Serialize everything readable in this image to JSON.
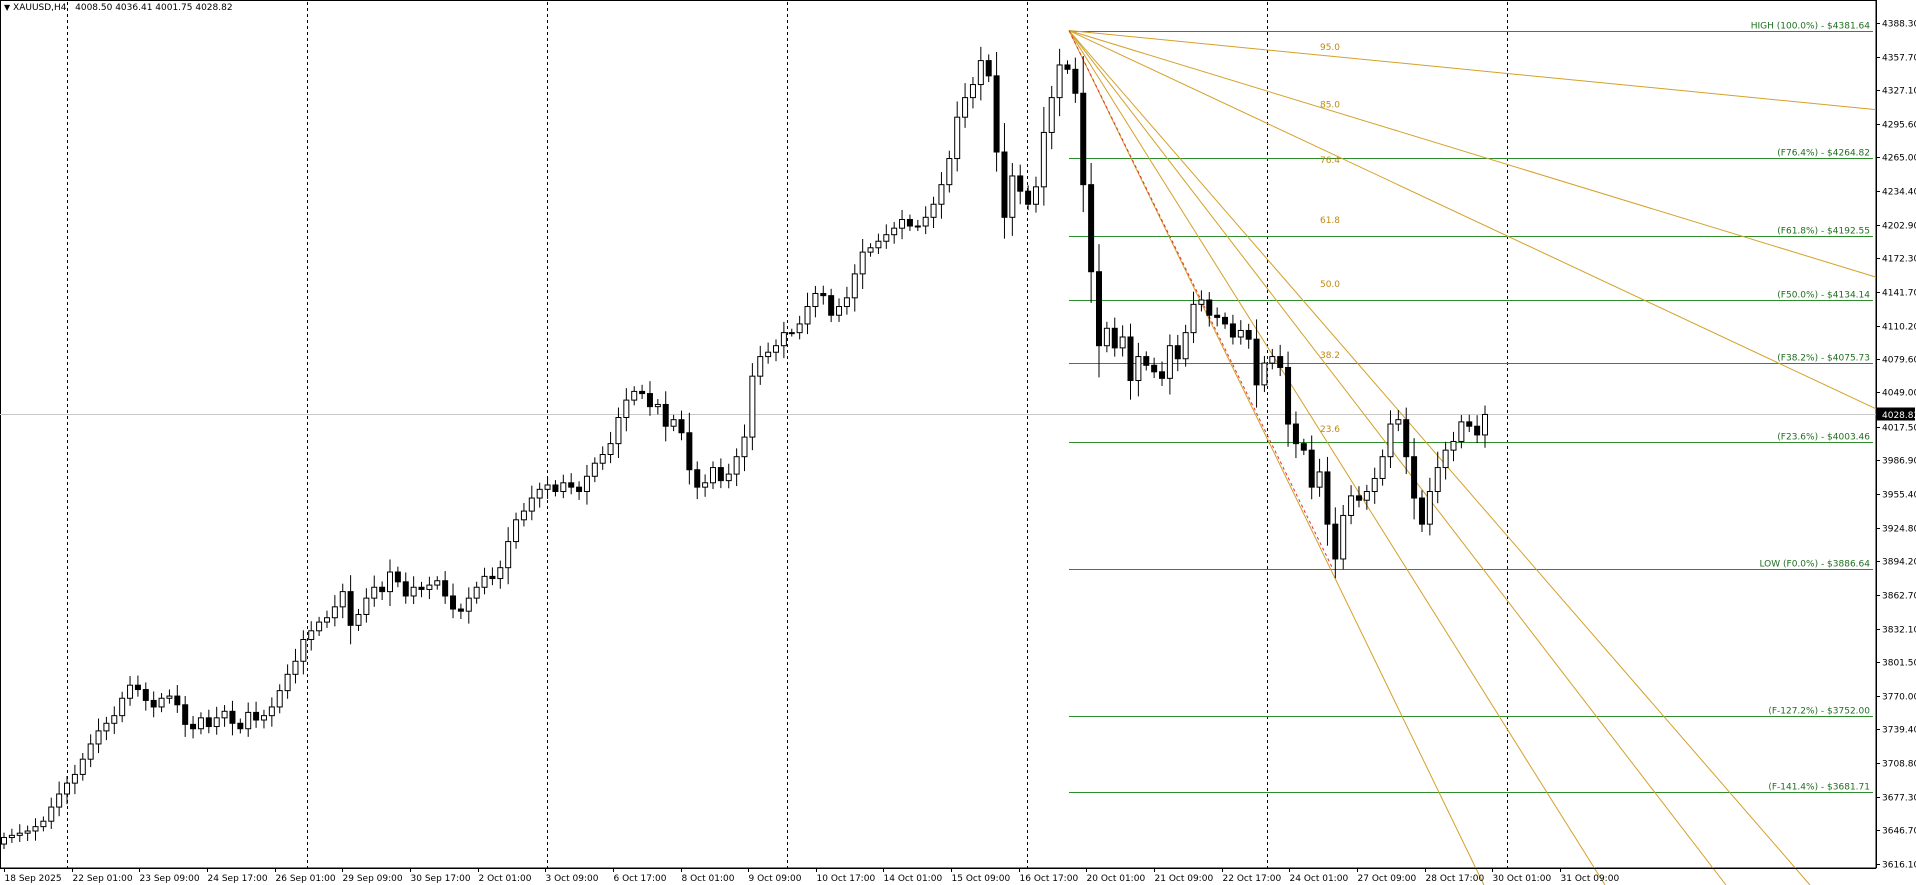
{
  "header": {
    "symbol": "XAUUSD,H4",
    "ohlc": "4008.50 4036.41 4001.75 4028.82",
    "menu_icon": "triangle-down-icon"
  },
  "chart_data": {
    "type": "candlestick",
    "symbol": "XAUUSD,H4",
    "price_axis": {
      "range": [
        3612,
        4395
      ],
      "ticks": [
        "4388.30",
        "4357.70",
        "4327.10",
        "4295.60",
        "4265.00",
        "4234.40",
        "4202.90",
        "4172.30",
        "4141.70",
        "4110.20",
        "4079.60",
        "4049.00",
        "4017.50",
        "3986.90",
        "3955.40",
        "3924.80",
        "3894.20",
        "3862.70",
        "3832.10",
        "3801.50",
        "3770.00",
        "3739.40",
        "3708.80",
        "3677.30",
        "3646.70",
        "3616.10"
      ],
      "current_price_label": "4028.82",
      "current_price": 4028.82
    },
    "time_axis": {
      "labels": [
        "18 Sep 2025",
        "22 Sep 01:00",
        "23 Sep 09:00",
        "24 Sep 17:00",
        "26 Sep 01:00",
        "29 Sep 09:00",
        "30 Sep 17:00",
        "2 Oct 01:00",
        "3 Oct 09:00",
        "6 Oct 17:00",
        "8 Oct 01:00",
        "9 Oct 09:00",
        "10 Oct 17:00",
        "14 Oct 01:00",
        "15 Oct 09:00",
        "16 Oct 17:00",
        "20 Oct 01:00",
        "21 Oct 09:00",
        "22 Oct 17:00",
        "24 Oct 01:00",
        "27 Oct 09:00",
        "28 Oct 17:00",
        "30 Oct 01:00",
        "31 Oct 09:00"
      ],
      "period_separators": 7
    },
    "closes": [
      3640,
      3642,
      3644,
      3646,
      3650,
      3655,
      3668,
      3680,
      3690,
      3698,
      3712,
      3726,
      3738,
      3745,
      3752,
      3768,
      3780,
      3776,
      3766,
      3760,
      3768,
      3770,
      3762,
      3744,
      3740,
      3750,
      3742,
      3750,
      3756,
      3745,
      3740,
      3755,
      3748,
      3752,
      3760,
      3775,
      3790,
      3802,
      3822,
      3830,
      3838,
      3842,
      3852,
      3866,
      3835,
      3845,
      3860,
      3870,
      3866,
      3884,
      3875,
      3862,
      3870,
      3868,
      3872,
      3876,
      3862,
      3850,
      3848,
      3860,
      3870,
      3880,
      3878,
      3888,
      3912,
      3932,
      3940,
      3952,
      3960,
      3964,
      3958,
      3966,
      3962,
      3958,
      3972,
      3984,
      3992,
      4002,
      4026,
      4042,
      4050,
      4048,
      4036,
      4038,
      4018,
      4024,
      4012,
      3978,
      3962,
      3966,
      3980,
      3968,
      3974,
      3990,
      4008,
      4064,
      4082,
      4086,
      4092,
      4104,
      4104,
      4112,
      4128,
      4140,
      4138,
      4120,
      4128,
      4136,
      4158,
      4178,
      4182,
      4188,
      4194,
      4200,
      4208,
      4202,
      4202,
      4210,
      4222,
      4240,
      4264,
      4302,
      4320,
      4332,
      4354,
      4340,
      4270,
      4210,
      4248,
      4234,
      4222,
      4238,
      4288,
      4320,
      4350,
      4346,
      4324,
      4240,
      4160,
      4092,
      4108,
      4090,
      4100,
      4060,
      4082,
      4074,
      4068,
      4062,
      4092,
      4080,
      4104,
      4130,
      4134,
      4120,
      4118,
      4112,
      4100,
      4106,
      4098,
      4056,
      4076,
      4082,
      4072,
      4020,
      4002,
      3996,
      3962,
      3976,
      3928,
      3896,
      3936,
      3954,
      3950,
      3958,
      3970,
      3990,
      4020,
      4024,
      3990,
      3952,
      3928,
      3958,
      3980,
      3996,
      4004,
      4022,
      4018,
      4010,
      4028.82
    ],
    "lines": [
      {
        "label": "HIGH (100.0%) - $4381.64",
        "value": 4381.64
      },
      {
        "label": "(F76.4%) - $4264.82",
        "value": 4264.82
      },
      {
        "label": "(F61.8%) - $4192.55",
        "value": 4192.55
      },
      {
        "label": "(F50.0%) - $4134.14",
        "value": 4134.14
      },
      {
        "label": "(F38.2%) - $4075.73",
        "value": 4075.73
      },
      {
        "label": "(F23.6%) - $4003.46",
        "value": 4003.46
      },
      {
        "label": "LOW (F0.0%) - $3886.64",
        "value": 3886.64
      },
      {
        "label": "(F-127.2%) - $3752.00",
        "value": 3752.0
      },
      {
        "label": "(F-141.4%) - $3681.71",
        "value": 3681.71
      }
    ],
    "fan_labels": [
      "95.0",
      "85.0",
      "76.4",
      "61.8",
      "50.0",
      "38.2",
      "23.6"
    ],
    "colors": {
      "line": "#2e8b2e",
      "line_label": "#1f6e1f",
      "fan": "#d4a02a",
      "fan_label": "#c08a10",
      "trend": "#e03030",
      "candle": "#000000",
      "grid": "#000000",
      "current_price_bg": "#000000"
    }
  }
}
